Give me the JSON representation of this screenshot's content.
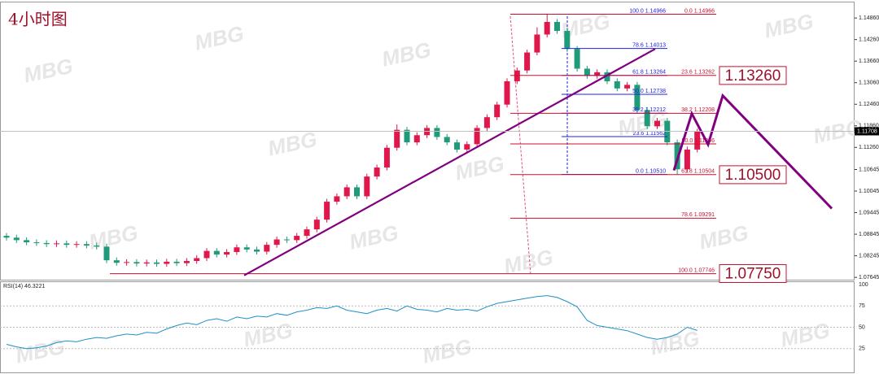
{
  "watermark": "MBG",
  "chart_data": [
    {
      "type": "candlestick",
      "title": "4小时图",
      "up_color": "#e0174a",
      "down_color": "#1f9a7a",
      "open": [
        1.088,
        1.0875,
        1.0868,
        1.0862,
        1.086,
        1.0857,
        1.0859,
        1.0855,
        1.0857,
        1.0853,
        1.085,
        1.0812,
        1.0805,
        1.0807,
        1.0803,
        1.0806,
        1.0802,
        1.0808,
        1.0804,
        1.081,
        1.0818,
        1.0838,
        1.0828,
        1.0835,
        1.0848,
        1.0842,
        1.0836,
        1.0855,
        1.087,
        1.0868,
        1.088,
        1.0898,
        1.0925,
        1.0975,
        1.099,
        1.1015,
        1.099,
        1.1045,
        1.107,
        1.1125,
        1.1175,
        1.114,
        1.116,
        1.118,
        1.1155,
        1.114,
        1.112,
        1.1135,
        1.118,
        1.121,
        1.1245,
        1.131,
        1.134,
        1.139,
        1.144,
        1.1475,
        1.145,
        1.14,
        1.1345,
        1.1325,
        1.1335,
        1.131,
        1.129,
        1.13,
        1.123,
        1.1185,
        1.12,
        1.114,
        1.1065,
        1.112
      ],
      "high": [
        1.0888,
        1.0883,
        1.0876,
        1.087,
        1.0868,
        1.0867,
        1.0867,
        1.0865,
        1.0865,
        1.0861,
        1.0858,
        1.082,
        1.0815,
        1.0815,
        1.0814,
        1.0814,
        1.0816,
        1.0816,
        1.0818,
        1.0826,
        1.0846,
        1.0846,
        1.0843,
        1.0856,
        1.0856,
        1.085,
        1.0863,
        1.0878,
        1.0878,
        1.0888,
        1.0906,
        1.0933,
        1.0983,
        1.0998,
        1.1023,
        1.1023,
        1.1053,
        1.1078,
        1.1133,
        1.119,
        1.1183,
        1.1168,
        1.1188,
        1.1188,
        1.1163,
        1.1148,
        1.1143,
        1.1188,
        1.1218,
        1.1253,
        1.1318,
        1.1348,
        1.1398,
        1.146,
        1.1497,
        1.1483,
        1.1458,
        1.1408,
        1.1353,
        1.1343,
        1.1343,
        1.1318,
        1.1308,
        1.1308,
        1.1238,
        1.1208,
        1.1208,
        1.1148,
        1.1128,
        1.1178
      ],
      "low": [
        1.0867,
        1.086,
        1.0854,
        1.0852,
        1.0849,
        1.0849,
        1.0847,
        1.0847,
        1.0845,
        1.0842,
        1.0804,
        1.0797,
        1.0797,
        1.0795,
        1.0795,
        1.0794,
        1.0794,
        1.0796,
        1.0796,
        1.0802,
        1.081,
        1.082,
        1.082,
        1.0827,
        1.0834,
        1.0828,
        1.0828,
        1.0847,
        1.086,
        1.086,
        1.0872,
        1.089,
        1.0917,
        1.0967,
        1.0982,
        1.0982,
        1.0982,
        1.1037,
        1.1062,
        1.1117,
        1.1132,
        1.1132,
        1.1152,
        1.1147,
        1.1132,
        1.1112,
        1.1112,
        1.1127,
        1.1172,
        1.1202,
        1.1237,
        1.1302,
        1.1332,
        1.1382,
        1.1432,
        1.1442,
        1.1392,
        1.1337,
        1.1317,
        1.1317,
        1.1302,
        1.1282,
        1.1282,
        1.1222,
        1.1177,
        1.1177,
        1.1132,
        1.1051,
        1.1057,
        1.1112
      ],
      "close": [
        1.0875,
        1.0868,
        1.0862,
        1.086,
        1.0857,
        1.0859,
        1.0855,
        1.0857,
        1.0853,
        1.085,
        1.0812,
        1.0805,
        1.0807,
        1.0803,
        1.0806,
        1.0802,
        1.0808,
        1.0804,
        1.081,
        1.0818,
        1.0838,
        1.0828,
        1.0835,
        1.0848,
        1.0842,
        1.0836,
        1.0855,
        1.087,
        1.0868,
        1.088,
        1.0898,
        1.0925,
        1.0975,
        1.099,
        1.1015,
        1.099,
        1.1045,
        1.107,
        1.1125,
        1.1175,
        1.114,
        1.116,
        1.118,
        1.1155,
        1.114,
        1.112,
        1.1135,
        1.118,
        1.121,
        1.1245,
        1.131,
        1.134,
        1.139,
        1.144,
        1.1475,
        1.145,
        1.14,
        1.1345,
        1.1325,
        1.1335,
        1.131,
        1.129,
        1.13,
        1.123,
        1.1185,
        1.12,
        1.114,
        1.1065,
        1.112,
        1.117
      ],
      "ylim": [
        1.0758,
        1.1527
      ],
      "yticks": [
        {
          "value": 1.1486,
          "label": "1.14860"
        },
        {
          "value": 1.1426,
          "label": "1.14260"
        },
        {
          "value": 1.1366,
          "label": "1.13660"
        },
        {
          "value": 1.1306,
          "label": "1.13060"
        },
        {
          "value": 1.1246,
          "label": "1.12460"
        },
        {
          "value": 1.1186,
          "label": "1.11860"
        },
        {
          "value": 1.1126,
          "label": "1.11260"
        },
        {
          "value": 1.10645,
          "label": "1.10645"
        },
        {
          "value": 1.10045,
          "label": "1.10045"
        },
        {
          "value": 1.09445,
          "label": "1.09445"
        },
        {
          "value": 1.08845,
          "label": "1.08845"
        },
        {
          "value": 1.08245,
          "label": "1.08245"
        },
        {
          "value": 1.07645,
          "label": "1.07645"
        }
      ],
      "last_price": {
        "value": 1.11708,
        "label": "1.11708"
      },
      "retracements": [
        {
          "color": "#2020e0",
          "levels": [
            {
              "value": 1.14966,
              "label": "100.0 1.14966"
            },
            {
              "value": 1.14013,
              "label": "78.6 1.14013"
            },
            {
              "value": 1.13264,
              "label": "61.8 1.13264"
            },
            {
              "value": 1.12738,
              "label": "50.0 1.12738"
            },
            {
              "value": 1.12212,
              "label": "38.2 1.12212"
            },
            {
              "value": 1.11562,
              "label": "23.6 1.11562"
            },
            {
              "value": 1.1051,
              "label": "0.0 1.10510"
            }
          ]
        },
        {
          "color": "#c8102e",
          "levels": [
            {
              "value": 1.14966,
              "label": "0.0 1.14966"
            },
            {
              "value": 1.13262,
              "label": "23.6 1.13262"
            },
            {
              "value": 1.12208,
              "label": "38.2 1.12208"
            },
            {
              "value": 1.11356,
              "label": "50.0 1.11356"
            },
            {
              "value": 1.10504,
              "label": "61.8 1.10504"
            },
            {
              "value": 1.09291,
              "label": "78.6 1.09291"
            },
            {
              "value": 1.07746,
              "label": "100.0 1.07746"
            }
          ]
        }
      ],
      "trendline": {
        "color": "#800080",
        "values": [
          1.077,
          1.14
        ]
      },
      "forecast": {
        "color": "#800080",
        "values": [
          1.1062,
          1.122,
          1.1134,
          1.127,
          1.0956
        ]
      },
      "key_levels": [
        {
          "value": 1.1326,
          "label": "1.13260"
        },
        {
          "value": 1.105,
          "label": "1.10500"
        },
        {
          "value": 1.0775,
          "label": "1.07750"
        }
      ]
    },
    {
      "type": "line",
      "title": "RSI(14) 46.3221",
      "color": "#1e90c8",
      "values": [
        30,
        27,
        25,
        26,
        28,
        32,
        34,
        33,
        36,
        38,
        37,
        40,
        42,
        41,
        44,
        43,
        48,
        52,
        55,
        53,
        58,
        60,
        57,
        62,
        60,
        63,
        62,
        66,
        64,
        68,
        70,
        73,
        72,
        75,
        70,
        68,
        66,
        70,
        72,
        69,
        75,
        71,
        70,
        68,
        72,
        70,
        71,
        69,
        74,
        78,
        80,
        82,
        84,
        86,
        87,
        85,
        80,
        74,
        58,
        52,
        50,
        48,
        46,
        42,
        38,
        36,
        38,
        42,
        50,
        46.3221
      ],
      "ylim": [
        0,
        100
      ],
      "yticks": [
        25,
        50,
        75,
        100
      ]
    }
  ]
}
